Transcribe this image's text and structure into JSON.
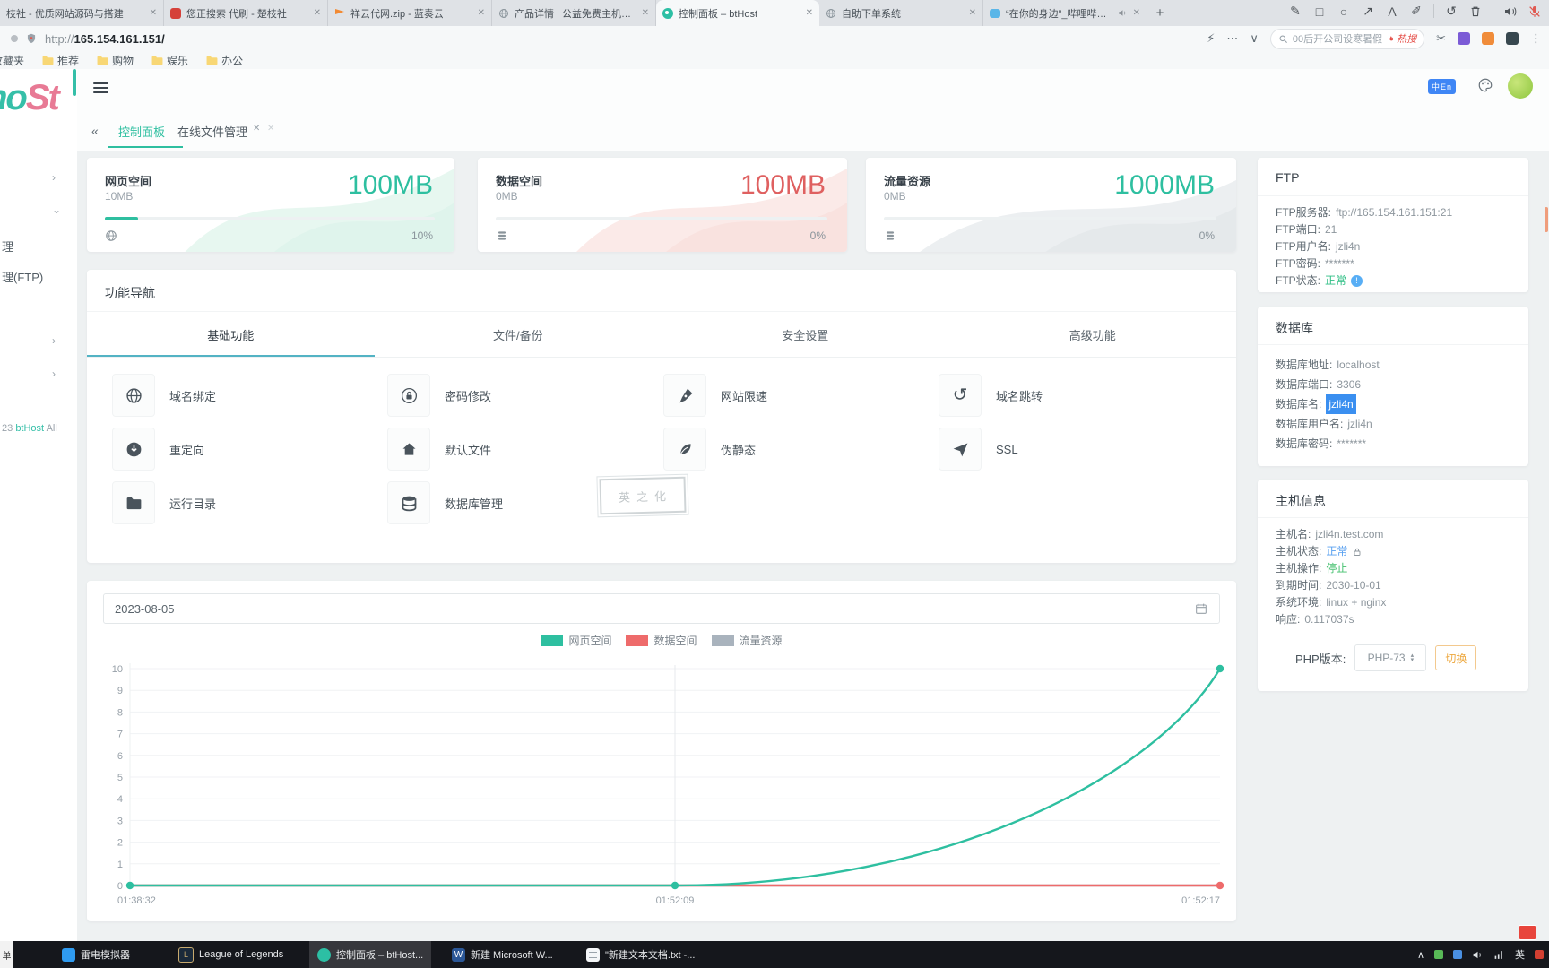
{
  "browser": {
    "tabs": [
      {
        "title": "枝社 - 优质网站源码与搭建"
      },
      {
        "title": "您正搜索 代刷 - 楚枝社"
      },
      {
        "title": "祥云代网.zip - 蓝奏云"
      },
      {
        "title": "产品详情 | 公益免费主机互联"
      },
      {
        "title": "控制面板 – btHost"
      },
      {
        "title": "自助下单系统"
      },
      {
        "title": "“在你的身边”_哔哩哔哩_b"
      }
    ],
    "new_tab": "+",
    "url_scheme": "http://",
    "url_host": "165.154.161.151/",
    "search_text": "00后开公司设寒暑假",
    "search_hot": "热搜",
    "bookmarks": [
      "收藏夹",
      "推荐",
      "购物",
      "娱乐",
      "办公"
    ]
  },
  "sidebar": {
    "logo_left": "ho",
    "logo_right": "St",
    "items": [
      "理",
      "理(FTP)"
    ],
    "footer_prefix": "23",
    "footer_brand": "btHost",
    "footer_suffix": "All"
  },
  "header": {
    "lang_badge": "中En"
  },
  "page_tabs": [
    {
      "label": "控制面板"
    },
    {
      "label": "在线文件管理"
    }
  ],
  "stats": [
    {
      "title": "网页空间",
      "used": "10MB",
      "total": "100MB",
      "percent": "10%",
      "percent_value": 10
    },
    {
      "title": "数据空间",
      "used": "0MB",
      "total": "100MB",
      "percent": "0%",
      "percent_value": 0
    },
    {
      "title": "流量资源",
      "used": "0MB",
      "total": "1000MB",
      "percent": "0%",
      "percent_value": 0
    }
  ],
  "features": {
    "title": "功能导航",
    "tabs": [
      "基础功能",
      "文件/备份",
      "安全设置",
      "高级功能"
    ],
    "items": [
      "域名绑定",
      "密码修改",
      "网站限速",
      "域名跳转",
      "重定向",
      "默认文件",
      "伪静态",
      "SSL",
      "运行目录",
      "数据库管理"
    ],
    "stamp": "英之化"
  },
  "chart": {
    "date": "2023-08-05"
  },
  "chart_data": {
    "type": "line",
    "title": "",
    "x": [
      "01:38:32",
      "01:52:09",
      "01:52:17"
    ],
    "x_positions": [
      0,
      0.5,
      1
    ],
    "ylim": [
      0,
      10
    ],
    "yticks": [
      0,
      1,
      2,
      3,
      4,
      5,
      6,
      7,
      8,
      9,
      10
    ],
    "grid": true,
    "legend_position": "top-center",
    "series": [
      {
        "name": "网页空间",
        "color": "#2ebfa0",
        "values": [
          0,
          0,
          10
        ],
        "dots": [
          0,
          1,
          2
        ]
      },
      {
        "name": "数据空间",
        "color": "#ee6b6b",
        "values": [
          0,
          0,
          0
        ],
        "dots": [
          2
        ]
      },
      {
        "name": "流量资源",
        "color": "#a9b3bd",
        "values": [
          0,
          0,
          0
        ],
        "dots": []
      }
    ]
  },
  "panels": {
    "ftp": {
      "title": "FTP",
      "rows": [
        {
          "label": "FTP服务器:",
          "value": "ftp://165.154.161.151:21"
        },
        {
          "label": "FTP端口:",
          "value": "21"
        },
        {
          "label": "FTP用户名:",
          "value": "jzli4n"
        },
        {
          "label": "FTP密码:",
          "value": "*******"
        },
        {
          "label": "FTP状态:",
          "value": "正常"
        }
      ]
    },
    "database": {
      "title": "数据库",
      "rows": [
        {
          "label": "数据库地址:",
          "value": "localhost"
        },
        {
          "label": "数据库端口:",
          "value": "3306"
        },
        {
          "label": "数据库名:",
          "value": "jzli4n"
        },
        {
          "label": "数据库用户名:",
          "value": "jzli4n"
        },
        {
          "label": "数据库密码:",
          "value": "*******"
        }
      ]
    },
    "host": {
      "title": "主机信息",
      "rows": [
        {
          "label": "主机名:",
          "value": "jzli4n.test.com"
        },
        {
          "label": "主机状态:",
          "value": "正常"
        },
        {
          "label": "主机操作:",
          "value": "停止"
        },
        {
          "label": "到期时间:",
          "value": "2030-10-01"
        },
        {
          "label": "系统环境:",
          "value": "linux + nginx"
        },
        {
          "label": "响应:",
          "value": "0.117037s"
        }
      ],
      "php_label": "PHP版本:",
      "php_value": "PHP-73",
      "php_button": "切换"
    }
  },
  "taskbar": {
    "edge": "单",
    "items": [
      "雷电模拟器",
      "League of Legends",
      "控制面板 – btHost...",
      "新建 Microsoft W...",
      "\"新建文本文档.txt -..."
    ],
    "tray_lang": "英"
  }
}
